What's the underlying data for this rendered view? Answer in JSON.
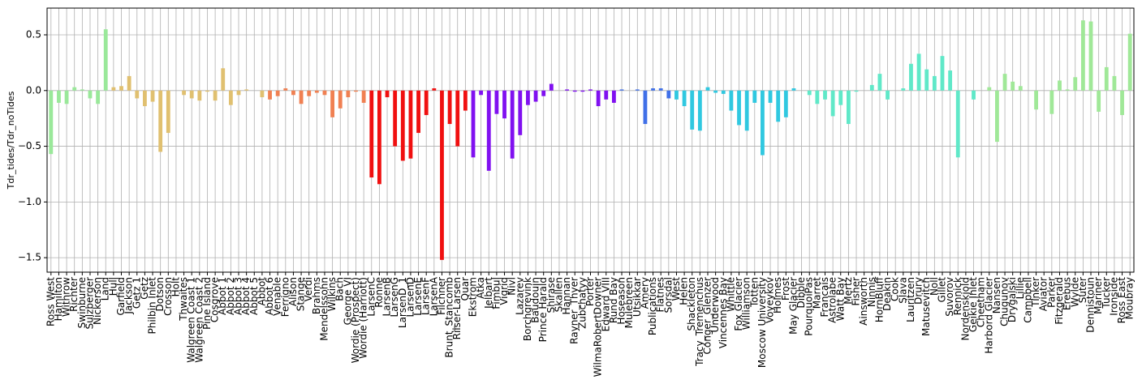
{
  "chart_data": {
    "type": "bar",
    "y_label": "Tdr_tides/Tdr_noTides",
    "categories": [
      "Ross West",
      "Hamilton",
      "Withrow",
      "Richter",
      "Swinburne",
      "Sulzberger",
      "Nickerson",
      "Land",
      "Hull",
      "Garfield",
      "Jackson",
      "Getz 1",
      "Getz",
      "Philbin Inlet",
      "Dotson",
      "Crosson",
      "Holt",
      "Thwaites",
      "Walgreen Coast 1",
      "Walgreen Coast 2",
      "Pine Island",
      "Cosgrove",
      "Abbot 1",
      "Abbot 2",
      "Abbot 3",
      "Abbot 4",
      "Abbot 5",
      "Abbot",
      "Abbot 6",
      "Venable",
      "Ferrigno",
      "Alison",
      "Stange",
      "Verdi",
      "Brahms",
      "Mendelssohn",
      "Wilkins",
      "Bach",
      "George VI",
      "Wordie (Prospect)",
      "Wordie (Harriott)",
      "LarsenC",
      "Ronne",
      "LarsenB",
      "LarsenG",
      "LarsenD_1",
      "LarsenD",
      "LarsenE",
      "LarsenF",
      "LarsenA",
      "Filchner",
      "Brunt_Stancomb",
      "Riiser-Larsen",
      "Quar",
      "Ekstrom",
      "Atka",
      "Jelbart",
      "Fimbul",
      "Vigrid",
      "Nivl",
      "Lazarev",
      "Borchgrevink",
      "Baudouin",
      "Prince Harald",
      "Shirase",
      "Skallen",
      "Hannan",
      "Rayner_Thyer",
      "Zubchatyy",
      "Porter",
      "WilmaRobertDowner",
      "Edward VIII",
      "Rund Bay",
      "Hoseason",
      "Mulebreen",
      "Utsikkar",
      "Amery",
      "Publications",
      "Flatnes",
      "Sorsdal",
      "West",
      "Helen",
      "Shackleton",
      "Tracy_Tremenchus",
      "Conger_Glenzer",
      "Underwood",
      "Vincennes Bay",
      "Whittle",
      "Fox Glacier",
      "Williamson",
      "Totten",
      "Moscow University",
      "Voyeykov",
      "Holmes",
      "Frost",
      "May Glacier",
      "Dibble",
      "PourquoiPas",
      "Marret",
      "Francais",
      "Astrolabe",
      "Watt Bay",
      "Mertz",
      "Fisher",
      "Ainsworth",
      "Ninnis",
      "HornBluff",
      "Deakin",
      "Cook",
      "Slava",
      "Lauritzen",
      "Drury",
      "Matusevitch",
      "Noll",
      "Gillet",
      "Suvorov",
      "Rennick",
      "Nordenskjold",
      "Geikie Inlet",
      "Cheetham",
      "Harbord Glacier",
      "Nansen",
      "Chugunov",
      "Drygalski",
      "Lillie",
      "Campbell",
      "Tinker",
      "Aviator",
      "Parker",
      "Fitzgerald",
      "Erebus",
      "Wylde",
      "Suter",
      "Dennistoun",
      "Mariner",
      "Tucker",
      "Ironside",
      "Ross East",
      "Moubray"
    ],
    "values": [
      -0.57,
      -0.11,
      -0.12,
      0.03,
      0.01,
      -0.07,
      -0.12,
      0.55,
      0.03,
      0.04,
      0.13,
      -0.07,
      -0.14,
      -0.1,
      -0.55,
      -0.38,
      0.0,
      -0.04,
      -0.07,
      -0.09,
      -0.01,
      -0.09,
      0.2,
      -0.13,
      -0.04,
      0.01,
      0.0,
      -0.06,
      -0.08,
      -0.05,
      0.02,
      -0.04,
      -0.12,
      -0.05,
      -0.02,
      -0.04,
      -0.24,
      -0.16,
      -0.06,
      -0.01,
      -0.11,
      -0.78,
      -0.84,
      -0.06,
      -0.5,
      -0.63,
      -0.61,
      -0.38,
      -0.22,
      0.02,
      -1.52,
      -0.3,
      -0.5,
      -0.18,
      -0.6,
      -0.04,
      -0.72,
      -0.21,
      -0.25,
      -0.61,
      -0.4,
      -0.13,
      -0.1,
      -0.05,
      0.06,
      0.0,
      0.01,
      -0.01,
      -0.01,
      0.01,
      -0.14,
      -0.08,
      -0.11,
      0.01,
      0.0,
      0.01,
      -0.3,
      0.02,
      0.02,
      -0.07,
      -0.08,
      -0.14,
      -0.35,
      -0.36,
      0.03,
      -0.02,
      -0.03,
      -0.18,
      -0.31,
      -0.36,
      -0.11,
      -0.58,
      -0.11,
      -0.28,
      -0.24,
      0.02,
      0.0,
      -0.04,
      -0.12,
      -0.08,
      -0.23,
      -0.13,
      -0.3,
      -0.01,
      0.0,
      0.05,
      0.15,
      -0.08,
      0.0,
      0.02,
      0.24,
      0.33,
      0.19,
      0.13,
      0.31,
      0.18,
      -0.6,
      0.0,
      -0.08,
      0.0,
      0.03,
      -0.46,
      0.15,
      0.08,
      0.04,
      0.0,
      -0.17,
      0.0,
      -0.21,
      0.09,
      0.01,
      0.12,
      0.63,
      0.62,
      -0.19,
      0.21,
      0.13,
      -0.22,
      0.51
    ],
    "colors": [
      "#9ae89a",
      "#9ae89a",
      "#9ae89a",
      "#9ae89a",
      "#9ae89a",
      "#9ae89a",
      "#9ae89a",
      "#9ae89a",
      "#e0c070",
      "#e0c070",
      "#e0c070",
      "#e0c070",
      "#e0c070",
      "#e0c070",
      "#e0c070",
      "#e0c070",
      "#e0c070",
      "#e0c070",
      "#e0c070",
      "#e0c070",
      "#e0c070",
      "#e0c070",
      "#e0c070",
      "#e0c070",
      "#e0c070",
      "#e0c070",
      "#e0c070",
      "#e0c070",
      "#f08052",
      "#f08052",
      "#f08052",
      "#f08052",
      "#f08052",
      "#f08052",
      "#f08052",
      "#f08052",
      "#f08052",
      "#f08052",
      "#f08052",
      "#f08052",
      "#f08052",
      "#f01010",
      "#f01010",
      "#f01010",
      "#f01010",
      "#f01010",
      "#f01010",
      "#f01010",
      "#f01010",
      "#f01010",
      "#f01010",
      "#f01010",
      "#f01010",
      "#f01010",
      "#8010f0",
      "#8010f0",
      "#8010f0",
      "#8010f0",
      "#8010f0",
      "#8010f0",
      "#8010f0",
      "#8010f0",
      "#8010f0",
      "#8010f0",
      "#8010f0",
      "#8010f0",
      "#8010f0",
      "#8010f0",
      "#8010f0",
      "#8010f0",
      "#8010f0",
      "#8010f0",
      "#8010f0",
      "#4070e8",
      "#4070e8",
      "#4070e8",
      "#4070e8",
      "#4070e8",
      "#4070e8",
      "#4070e8",
      "#30c8e0",
      "#30c8e0",
      "#30c8e0",
      "#30c8e0",
      "#30c8e0",
      "#30c8e0",
      "#30c8e0",
      "#30c8e0",
      "#30c8e0",
      "#30c8e0",
      "#30c8e0",
      "#30c8e0",
      "#30c8e0",
      "#30c8e0",
      "#30c8e0",
      "#30c8e0",
      "#60e8c8",
      "#60e8c8",
      "#60e8c8",
      "#60e8c8",
      "#60e8c8",
      "#60e8c8",
      "#60e8c8",
      "#60e8c8",
      "#60e8c8",
      "#60e8c8",
      "#60e8c8",
      "#60e8c8",
      "#60e8c8",
      "#60e8c8",
      "#60e8c8",
      "#60e8c8",
      "#60e8c8",
      "#60e8c8",
      "#60e8c8",
      "#60e8c8",
      "#60e8c8",
      "#60e8c8",
      "#60e8c8",
      "#60e8c8",
      "#a0e898",
      "#a0e898",
      "#a0e898",
      "#a0e898",
      "#a0e898",
      "#a0e898",
      "#a0e898",
      "#a0e898",
      "#a0e898",
      "#a0e898",
      "#a0e898",
      "#a0e898",
      "#a0e898",
      "#a0e898",
      "#a0e898",
      "#a0e898",
      "#a0e898",
      "#a0e898",
      "#a0e898"
    ],
    "ylim": [
      -1.63,
      0.74
    ],
    "yticks": [
      0.5,
      {
        "value": 0,
        "label": "0.0"
      },
      {
        "value": -0.5,
        "label": "−0.5"
      },
      {
        "value": -1.0,
        "label": "−1.0"
      },
      {
        "value": -1.5,
        "label": "−1.5"
      }
    ],
    "grid": true
  }
}
